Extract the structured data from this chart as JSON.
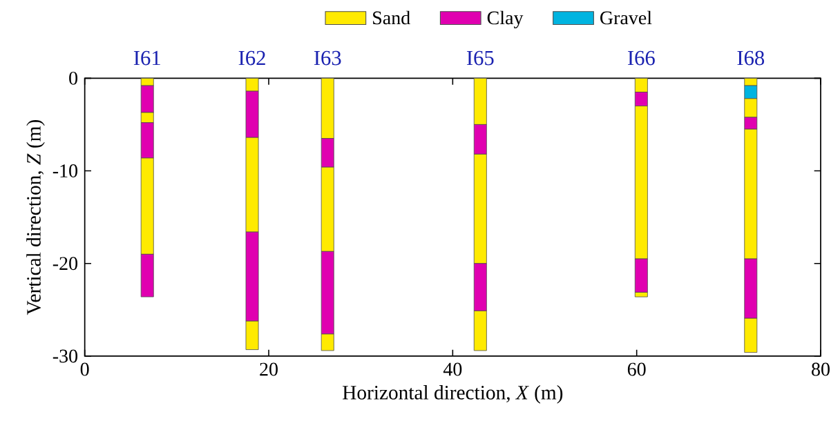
{
  "chart_data": {
    "type": "bar",
    "xlabel": "Horizontal direction, *X* (m)",
    "ylabel": "Vertical direction, *Z* (m)",
    "xlim": [
      0,
      80
    ],
    "xticks": [
      0,
      20,
      40,
      60,
      80
    ],
    "ylim": [
      -30,
      0
    ],
    "yticks": [
      -30,
      -20,
      -10,
      0
    ],
    "legend": "top",
    "series": [
      {
        "name": "Sand",
        "color": "#ffea00",
        "x": [
          6.8,
          18.2,
          26.4,
          43,
          60.5,
          72.4
        ],
        "base": [
          0,
          0,
          0,
          0,
          0,
          0
        ],
        "values": [
          -0.8,
          -1.4,
          -6.5,
          -5,
          -1.5,
          -0.8
        ]
      },
      {
        "name": "Clay",
        "color": "#e000b0",
        "x": [
          6.8,
          18.2,
          26.4,
          43,
          60.5,
          72.4
        ],
        "base": [
          -0.8,
          -1.4,
          -6.5,
          -5,
          -1.5,
          -4.2
        ],
        "values": [
          -2.9,
          -5,
          -3.1,
          -3.2,
          -1.5,
          -1.3
        ]
      },
      {
        "name": "Gravel",
        "color": "#00b4e0",
        "x": [
          72.4
        ],
        "base": [
          -0.8
        ],
        "values": [
          -1.4
        ]
      },
      {
        "color": "#ffea00",
        "x": [
          6.8,
          18.2,
          26.4,
          43,
          60.5,
          72.4
        ],
        "base": [
          -3.7,
          -6.4,
          -9.6,
          -8.2,
          -3,
          -2.2
        ],
        "values": [
          -1.1,
          -10.2,
          -9.1,
          -11.8,
          -16.5,
          -2
        ]
      },
      {
        "color": "#ffea00",
        "x": [
          6.8,
          18.2,
          26.4,
          43,
          60.5,
          72.4
        ],
        "base": [
          -8.6,
          -26.2,
          -27.6,
          -25.1,
          -23.1,
          -5.5
        ],
        "values": [
          -10.4,
          -3.1,
          -1.8,
          -4.3,
          -0.5,
          -14
        ]
      },
      {
        "color": "#ffea00",
        "x": [
          72.4
        ],
        "base": [
          -25.9
        ],
        "values": [
          -3.7
        ]
      },
      {
        "color": "#e000b0",
        "x": [
          6.8,
          18.2,
          26.4,
          43,
          60.5,
          72.4
        ],
        "base": [
          -4.8,
          -16.6,
          -18.7,
          -20,
          -19.5,
          -19.5
        ],
        "values": [
          -3.8,
          -9.6,
          -8.9,
          -5.1,
          -3.6,
          -6.4
        ]
      },
      {
        "color": "#e000b0",
        "x": [
          6.8
        ],
        "base": [
          -19
        ],
        "values": [
          -4.6
        ]
      }
    ],
    "annotations": [
      {
        "text": "I61",
        "x": 6.8,
        "y": 0
      },
      {
        "text": "I62",
        "x": 18.2,
        "y": 0
      },
      {
        "text": "I63",
        "x": 26.4,
        "y": 0
      },
      {
        "text": "I65",
        "x": 43,
        "y": 0
      },
      {
        "text": "I66",
        "x": 60.5,
        "y": 0
      },
      {
        "text": "I68",
        "x": 72.4,
        "y": 0
      }
    ]
  }
}
